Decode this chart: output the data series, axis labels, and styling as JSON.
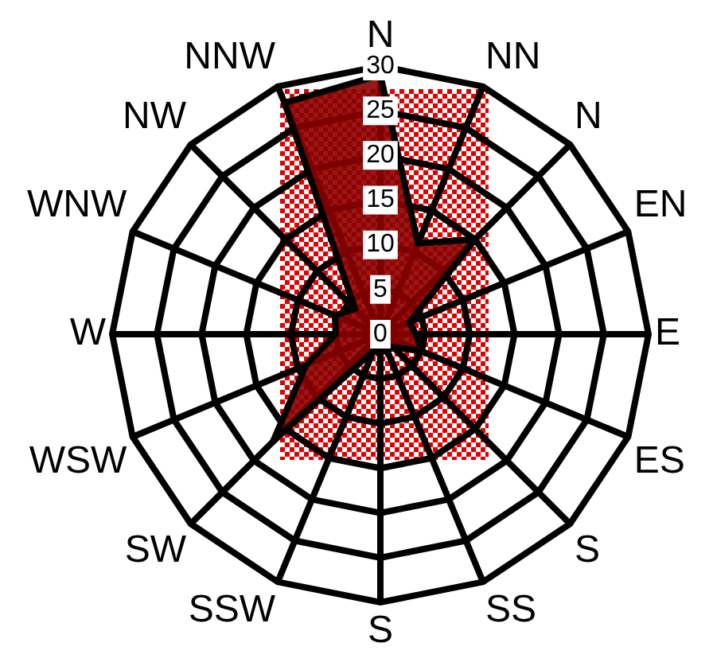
{
  "chart_data": {
    "type": "radar",
    "categories": [
      "N",
      "NN",
      "N",
      "EN",
      "E",
      "ES",
      "S",
      "SS",
      "S",
      "SSW",
      "SW",
      "WSW",
      "W",
      "WNW",
      "NW",
      "NNW"
    ],
    "series": [
      {
        "color": "#8b0000",
        "values": [
          29,
          11,
          15,
          3.5,
          4,
          5,
          2,
          2,
          2,
          2,
          17,
          9,
          5,
          5.5,
          4,
          28
        ]
      }
    ],
    "ylim": [
      0,
      30
    ],
    "yticks": [
      0,
      5,
      10,
      15,
      20,
      25,
      30
    ],
    "grid": true,
    "legend": false,
    "marker": "none"
  }
}
